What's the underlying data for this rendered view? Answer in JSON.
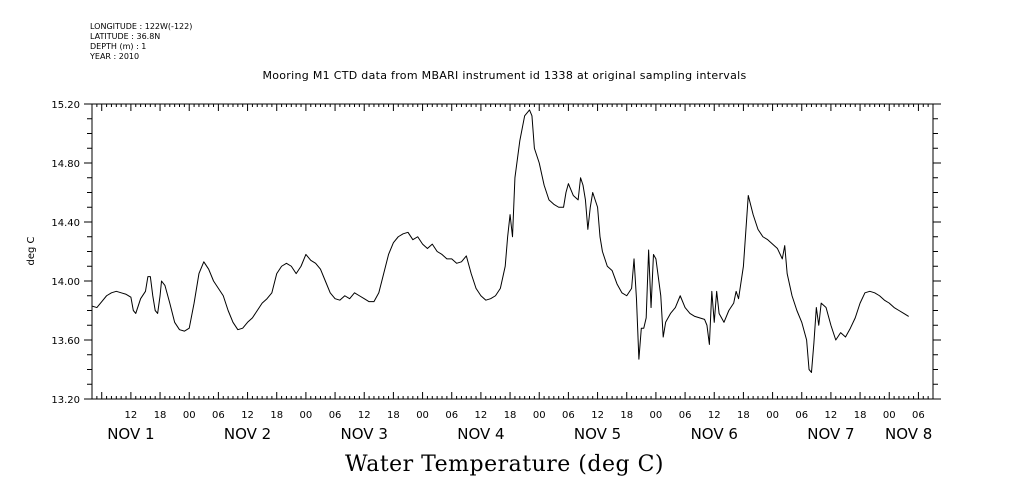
{
  "meta": {
    "longitude": "LONGITUDE : 122W(-122)",
    "latitude": "LATITUDE : 36.8N",
    "depth": "DEPTH (m) : 1",
    "year": "YEAR : 2010"
  },
  "chart_data": {
    "type": "line",
    "title": "Mooring M1 CTD data from MBARI instrument id 1338 at original sampling intervals",
    "bottom_title": "Water Temperature (deg C)",
    "xlabel": "",
    "ylabel": "deg C",
    "ylim": [
      13.2,
      15.2
    ],
    "xlim_hours": [
      4,
      177
    ],
    "grid": false,
    "y_ticks": [
      "13.20",
      "13.60",
      "14.00",
      "14.40",
      "14.80",
      "15.20"
    ],
    "x_hour_labels": [
      {
        "h": 12,
        "t": "12"
      },
      {
        "h": 18,
        "t": "18"
      },
      {
        "h": 24,
        "t": "00"
      },
      {
        "h": 30,
        "t": "06"
      },
      {
        "h": 36,
        "t": "12"
      },
      {
        "h": 42,
        "t": "18"
      },
      {
        "h": 48,
        "t": "00"
      },
      {
        "h": 54,
        "t": "06"
      },
      {
        "h": 60,
        "t": "12"
      },
      {
        "h": 66,
        "t": "18"
      },
      {
        "h": 72,
        "t": "00"
      },
      {
        "h": 78,
        "t": "06"
      },
      {
        "h": 84,
        "t": "12"
      },
      {
        "h": 90,
        "t": "18"
      },
      {
        "h": 96,
        "t": "00"
      },
      {
        "h": 102,
        "t": "06"
      },
      {
        "h": 108,
        "t": "12"
      },
      {
        "h": 114,
        "t": "18"
      },
      {
        "h": 120,
        "t": "00"
      },
      {
        "h": 126,
        "t": "06"
      },
      {
        "h": 132,
        "t": "12"
      },
      {
        "h": 138,
        "t": "18"
      },
      {
        "h": 144,
        "t": "00"
      },
      {
        "h": 150,
        "t": "06"
      },
      {
        "h": 156,
        "t": "12"
      },
      {
        "h": 162,
        "t": "18"
      },
      {
        "h": 168,
        "t": "00"
      },
      {
        "h": 174,
        "t": "06"
      }
    ],
    "date_labels": [
      {
        "h": 12,
        "t": "NOV  1"
      },
      {
        "h": 36,
        "t": "NOV  2"
      },
      {
        "h": 60,
        "t": "NOV  3"
      },
      {
        "h": 84,
        "t": "NOV  4"
      },
      {
        "h": 108,
        "t": "NOV  5"
      },
      {
        "h": 132,
        "t": "NOV  6"
      },
      {
        "h": 156,
        "t": "NOV  7"
      },
      {
        "h": 172,
        "t": "NOV  8"
      }
    ],
    "series": [
      {
        "points": [
          [
            4,
            13.83
          ],
          [
            5,
            13.82
          ],
          [
            6,
            13.86
          ],
          [
            7,
            13.9
          ],
          [
            8,
            13.92
          ],
          [
            9,
            13.93
          ],
          [
            10,
            13.92
          ],
          [
            11,
            13.91
          ],
          [
            12,
            13.89
          ],
          [
            12.5,
            13.8
          ],
          [
            13,
            13.78
          ],
          [
            14,
            13.88
          ],
          [
            15,
            13.93
          ],
          [
            15.5,
            14.03
          ],
          [
            16,
            14.03
          ],
          [
            16.5,
            13.9
          ],
          [
            17,
            13.8
          ],
          [
            17.5,
            13.78
          ],
          [
            18,
            13.9
          ],
          [
            18.3,
            14.0
          ],
          [
            19,
            13.97
          ],
          [
            20,
            13.85
          ],
          [
            21,
            13.72
          ],
          [
            22,
            13.67
          ],
          [
            23,
            13.66
          ],
          [
            24,
            13.68
          ],
          [
            25,
            13.85
          ],
          [
            26,
            14.05
          ],
          [
            27,
            14.13
          ],
          [
            28,
            14.08
          ],
          [
            29,
            14.0
          ],
          [
            30,
            13.95
          ],
          [
            31,
            13.9
          ],
          [
            32,
            13.8
          ],
          [
            33,
            13.72
          ],
          [
            34,
            13.67
          ],
          [
            35,
            13.68
          ],
          [
            36,
            13.72
          ],
          [
            37,
            13.75
          ],
          [
            38,
            13.8
          ],
          [
            39,
            13.85
          ],
          [
            40,
            13.88
          ],
          [
            41,
            13.92
          ],
          [
            42,
            14.05
          ],
          [
            43,
            14.1
          ],
          [
            44,
            14.12
          ],
          [
            45,
            14.1
          ],
          [
            46,
            14.05
          ],
          [
            47,
            14.1
          ],
          [
            48,
            14.18
          ],
          [
            49,
            14.14
          ],
          [
            50,
            14.12
          ],
          [
            51,
            14.08
          ],
          [
            52,
            14.0
          ],
          [
            53,
            13.92
          ],
          [
            54,
            13.88
          ],
          [
            55,
            13.87
          ],
          [
            56,
            13.9
          ],
          [
            57,
            13.88
          ],
          [
            58,
            13.92
          ],
          [
            59,
            13.9
          ],
          [
            60,
            13.88
          ],
          [
            61,
            13.86
          ],
          [
            62,
            13.86
          ],
          [
            63,
            13.92
          ],
          [
            64,
            14.05
          ],
          [
            65,
            14.18
          ],
          [
            66,
            14.26
          ],
          [
            67,
            14.3
          ],
          [
            68,
            14.32
          ],
          [
            69,
            14.33
          ],
          [
            70,
            14.28
          ],
          [
            71,
            14.3
          ],
          [
            72,
            14.25
          ],
          [
            73,
            14.22
          ],
          [
            74,
            14.25
          ],
          [
            75,
            14.2
          ],
          [
            76,
            14.18
          ],
          [
            77,
            14.15
          ],
          [
            78,
            14.15
          ],
          [
            79,
            14.12
          ],
          [
            80,
            14.13
          ],
          [
            81,
            14.17
          ],
          [
            82,
            14.05
          ],
          [
            83,
            13.95
          ],
          [
            84,
            13.9
          ],
          [
            85,
            13.87
          ],
          [
            86,
            13.88
          ],
          [
            87,
            13.9
          ],
          [
            88,
            13.95
          ],
          [
            89,
            14.1
          ],
          [
            89.5,
            14.3
          ],
          [
            90,
            14.45
          ],
          [
            90.5,
            14.3
          ],
          [
            91,
            14.7
          ],
          [
            92,
            14.95
          ],
          [
            93,
            15.12
          ],
          [
            94,
            15.16
          ],
          [
            94.5,
            15.12
          ],
          [
            95,
            14.9
          ],
          [
            96,
            14.8
          ],
          [
            97,
            14.65
          ],
          [
            98,
            14.55
          ],
          [
            99,
            14.52
          ],
          [
            100,
            14.5
          ],
          [
            101,
            14.5
          ],
          [
            101.5,
            14.6
          ],
          [
            102,
            14.66
          ],
          [
            103,
            14.58
          ],
          [
            104,
            14.55
          ],
          [
            104.5,
            14.7
          ],
          [
            105,
            14.65
          ],
          [
            105.5,
            14.55
          ],
          [
            106,
            14.35
          ],
          [
            106.5,
            14.5
          ],
          [
            107,
            14.6
          ],
          [
            107.5,
            14.55
          ],
          [
            108,
            14.5
          ],
          [
            108.5,
            14.3
          ],
          [
            109,
            14.2
          ],
          [
            110,
            14.1
          ],
          [
            111,
            14.07
          ],
          [
            112,
            13.98
          ],
          [
            113,
            13.92
          ],
          [
            114,
            13.9
          ],
          [
            115,
            13.95
          ],
          [
            115.5,
            14.15
          ],
          [
            116,
            13.88
          ],
          [
            116.5,
            13.47
          ],
          [
            117,
            13.68
          ],
          [
            117.5,
            13.68
          ],
          [
            118,
            13.75
          ],
          [
            118.5,
            14.21
          ],
          [
            119,
            13.82
          ],
          [
            119.5,
            14.18
          ],
          [
            120,
            14.15
          ],
          [
            121,
            13.9
          ],
          [
            121.5,
            13.62
          ],
          [
            122,
            13.72
          ],
          [
            123,
            13.78
          ],
          [
            124,
            13.82
          ],
          [
            125,
            13.9
          ],
          [
            126,
            13.82
          ],
          [
            127,
            13.78
          ],
          [
            128,
            13.76
          ],
          [
            129,
            13.75
          ],
          [
            130,
            13.74
          ],
          [
            130.5,
            13.7
          ],
          [
            131,
            13.57
          ],
          [
            131.5,
            13.93
          ],
          [
            132,
            13.72
          ],
          [
            132.5,
            13.93
          ],
          [
            133,
            13.78
          ],
          [
            134,
            13.72
          ],
          [
            135,
            13.8
          ],
          [
            136,
            13.85
          ],
          [
            136.5,
            13.93
          ],
          [
            137,
            13.88
          ],
          [
            138,
            14.1
          ],
          [
            139,
            14.58
          ],
          [
            140,
            14.45
          ],
          [
            141,
            14.35
          ],
          [
            142,
            14.3
          ],
          [
            143,
            14.28
          ],
          [
            144,
            14.25
          ],
          [
            145,
            14.22
          ],
          [
            146,
            14.15
          ],
          [
            146.5,
            14.24
          ],
          [
            147,
            14.05
          ],
          [
            148,
            13.9
          ],
          [
            149,
            13.8
          ],
          [
            150,
            13.72
          ],
          [
            151,
            13.6
          ],
          [
            151.5,
            13.4
          ],
          [
            152,
            13.38
          ],
          [
            152.5,
            13.58
          ],
          [
            153,
            13.82
          ],
          [
            153.5,
            13.7
          ],
          [
            154,
            13.85
          ],
          [
            155,
            13.82
          ],
          [
            156,
            13.7
          ],
          [
            157,
            13.6
          ],
          [
            158,
            13.65
          ],
          [
            159,
            13.62
          ],
          [
            160,
            13.68
          ],
          [
            161,
            13.75
          ],
          [
            162,
            13.85
          ],
          [
            163,
            13.92
          ],
          [
            164,
            13.93
          ],
          [
            165,
            13.92
          ],
          [
            166,
            13.9
          ],
          [
            167,
            13.87
          ],
          [
            168,
            13.85
          ],
          [
            169,
            13.82
          ],
          [
            170,
            13.8
          ],
          [
            171,
            13.78
          ],
          [
            172,
            13.76
          ]
        ]
      }
    ]
  }
}
